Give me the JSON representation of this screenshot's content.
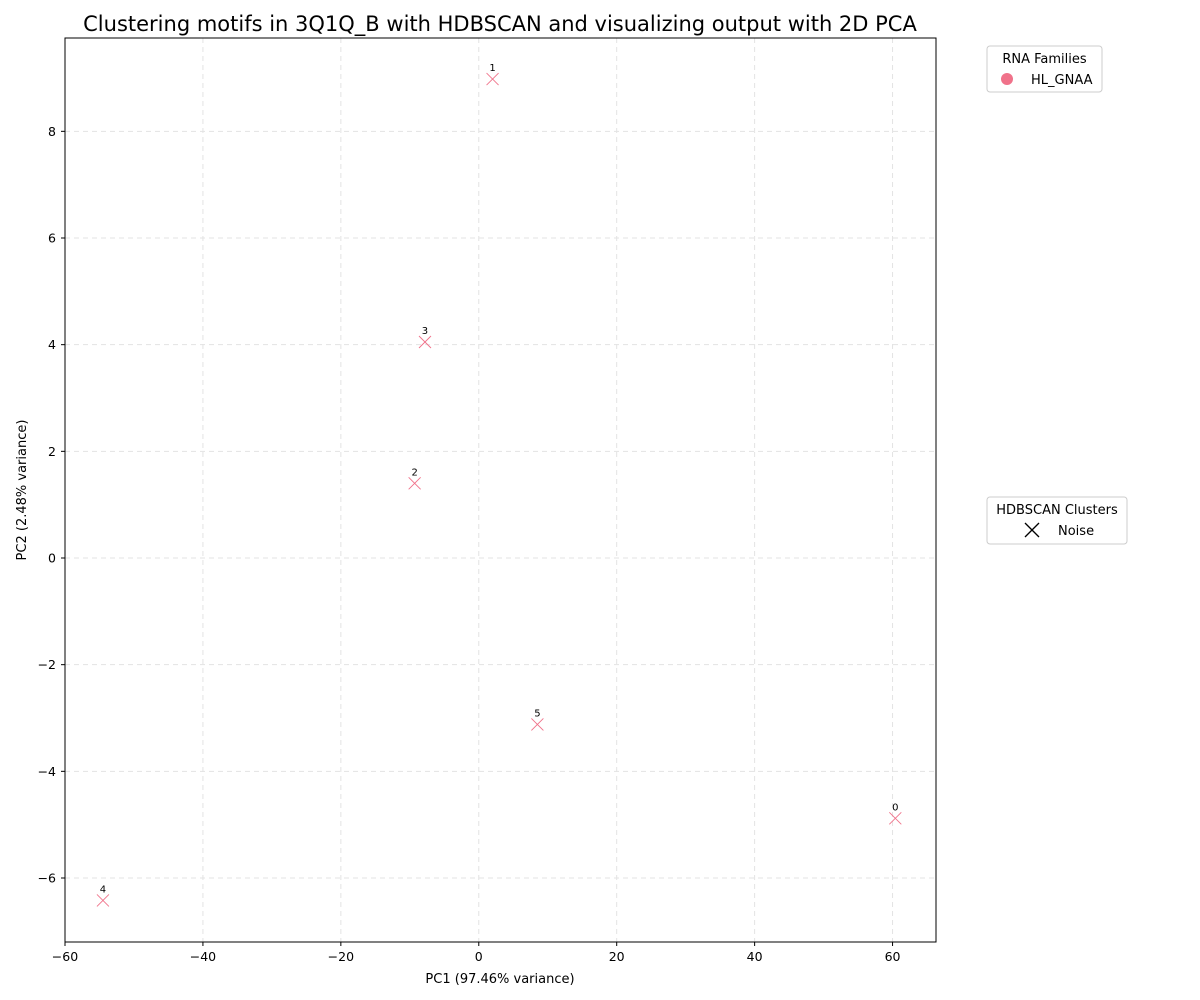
{
  "chart_data": {
    "type": "scatter",
    "title": "Clustering motifs in 3Q1Q_B with HDBSCAN and visualizing output with 2D PCA",
    "xlabel": "PC1 (97.46% variance)",
    "ylabel": "PC2 (2.48% variance)",
    "xlim": [
      -60,
      66.3
    ],
    "ylim": [
      -7.2,
      9.75
    ],
    "xticks": [
      -60,
      -40,
      -20,
      0,
      20,
      40,
      60
    ],
    "yticks": [
      -6,
      -4,
      -2,
      0,
      2,
      4,
      6,
      8
    ],
    "grid": true,
    "points": [
      {
        "label": "0",
        "x": 60.4,
        "y": -4.88,
        "family": "HL_GNAA",
        "cluster": "Noise"
      },
      {
        "label": "1",
        "x": 2.0,
        "y": 8.98,
        "family": "HL_GNAA",
        "cluster": "Noise"
      },
      {
        "label": "2",
        "x": -9.3,
        "y": 1.4,
        "family": "HL_GNAA",
        "cluster": "Noise"
      },
      {
        "label": "3",
        "x": -7.8,
        "y": 4.05,
        "family": "HL_GNAA",
        "cluster": "Noise"
      },
      {
        "label": "4",
        "x": -54.5,
        "y": -6.42,
        "family": "HL_GNAA",
        "cluster": "Noise"
      },
      {
        "label": "5",
        "x": 8.5,
        "y": -3.12,
        "family": "HL_GNAA",
        "cluster": "Noise"
      }
    ],
    "legends": [
      {
        "title": "RNA Families",
        "placement": "top-right-outside",
        "entries": [
          {
            "label": "HL_GNAA",
            "marker": "circle",
            "color": "#f0728a"
          }
        ]
      },
      {
        "title": "HDBSCAN Clusters",
        "placement": "center-right-outside",
        "entries": [
          {
            "label": "Noise",
            "marker": "x",
            "color": "#000000"
          }
        ]
      }
    ],
    "point_color": "#f0728a"
  }
}
